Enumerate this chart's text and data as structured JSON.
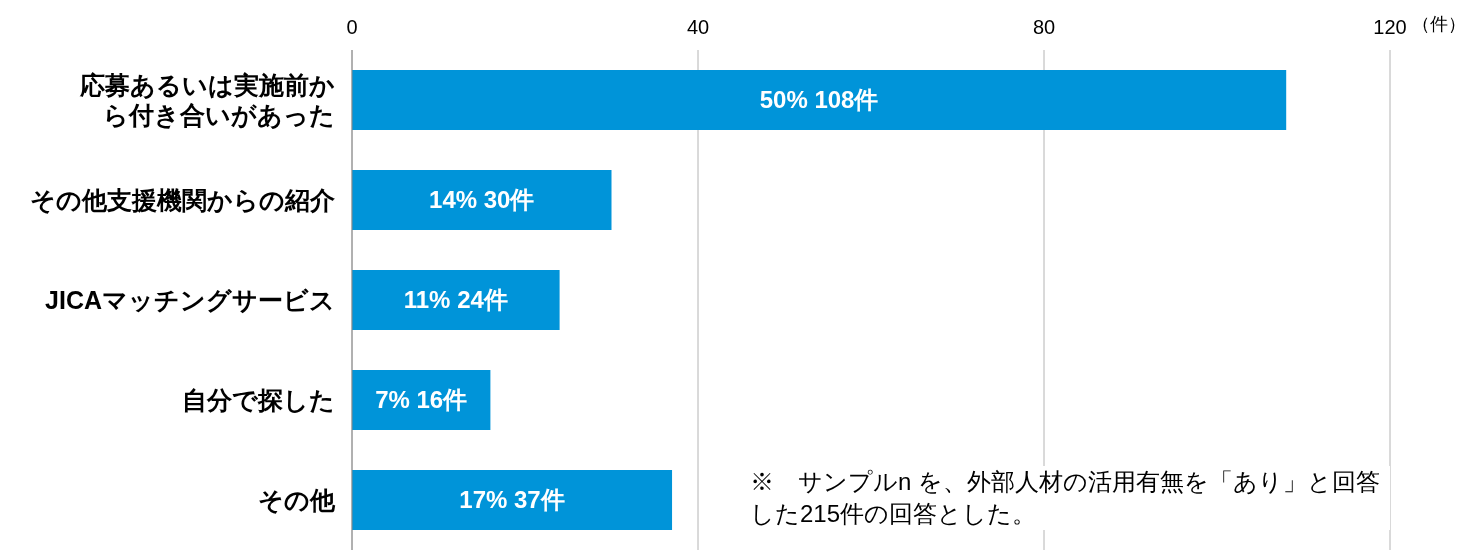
{
  "chart_data": {
    "type": "bar",
    "orientation": "horizontal",
    "xlabel": "（件）",
    "categories": [
      "応募あるいは実施前から付き合いがあった",
      "その他支援機関からの紹介",
      "JICAマッチングサービス",
      "自分で探した",
      "その他"
    ],
    "values": [
      108,
      30,
      24,
      16,
      37
    ],
    "value_labels": [
      "50% 108件",
      "14% 30件",
      "11% 24件",
      "7% 16件",
      "17% 37件"
    ],
    "color": "#0094d9",
    "xlim": [
      0,
      120
    ],
    "xticks": [
      0,
      40,
      80,
      120
    ],
    "grid": "x",
    "annotations": [
      "※　サンプルn を、外部人材の活用有無を「あり」と回答した215件の回答とした。"
    ]
  }
}
